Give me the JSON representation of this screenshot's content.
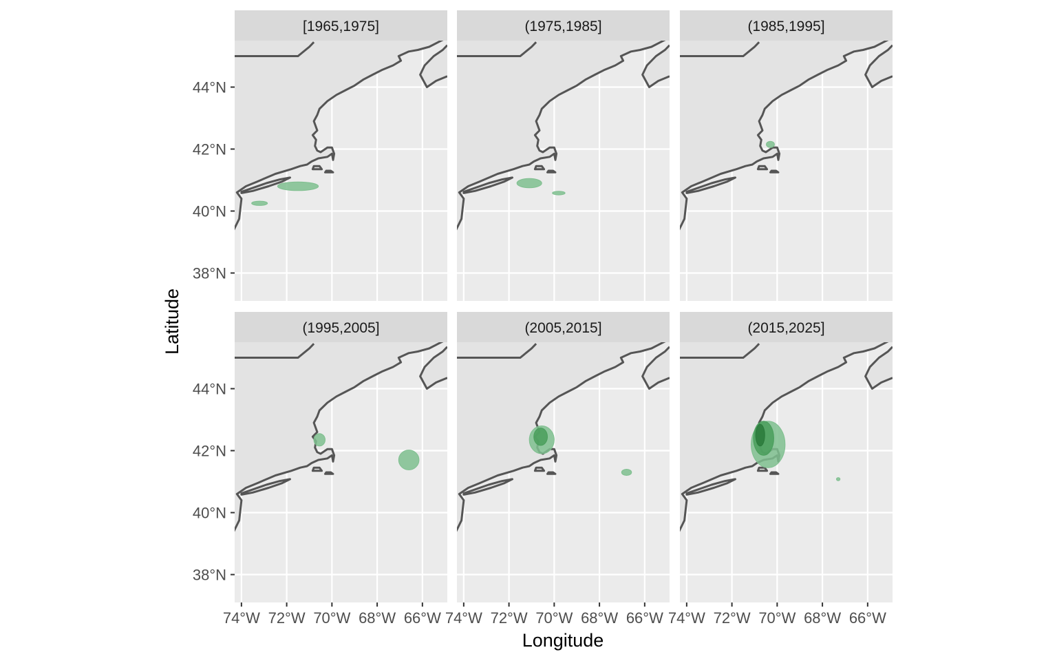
{
  "chart_data": {
    "type": "faceted-map",
    "xlabel": "Longitude",
    "ylabel": "Latitude",
    "xlim": [
      -74.3,
      -64.9
    ],
    "ylim": [
      37.1,
      45.5
    ],
    "x_ticks": [
      -74,
      -72,
      -70,
      -68,
      -66
    ],
    "x_tick_labels": [
      "74°W",
      "72°W",
      "70°W",
      "68°W",
      "66°W"
    ],
    "y_ticks": [
      38,
      40,
      42,
      44
    ],
    "y_tick_labels": [
      "38°N",
      "40°N",
      "42°N",
      "44°N"
    ],
    "facets": [
      {
        "label": "[1965,1975]",
        "regions": [
          {
            "lon": -71.5,
            "lat": 40.8,
            "rx": 0.9,
            "ry": 0.14,
            "level": 1
          },
          {
            "lon": -73.2,
            "lat": 40.25,
            "rx": 0.35,
            "ry": 0.07,
            "level": 1
          }
        ]
      },
      {
        "label": "(1975,1985]",
        "regions": [
          {
            "lon": -71.1,
            "lat": 40.9,
            "rx": 0.55,
            "ry": 0.15,
            "level": 1
          },
          {
            "lon": -69.8,
            "lat": 40.58,
            "rx": 0.28,
            "ry": 0.06,
            "level": 1
          }
        ]
      },
      {
        "label": "(1985,1995]",
        "regions": [
          {
            "lon": -70.3,
            "lat": 42.15,
            "rx": 0.18,
            "ry": 0.1,
            "level": 1
          }
        ]
      },
      {
        "label": "(1995,2005]",
        "regions": [
          {
            "lon": -70.55,
            "lat": 42.35,
            "rx": 0.25,
            "ry": 0.2,
            "level": 1
          },
          {
            "lon": -66.6,
            "lat": 41.7,
            "rx": 0.45,
            "ry": 0.32,
            "level": 1
          }
        ]
      },
      {
        "label": "(2005,2015]",
        "regions": [
          {
            "lon": -70.55,
            "lat": 42.35,
            "rx": 0.55,
            "ry": 0.45,
            "level": 1
          },
          {
            "lon": -70.6,
            "lat": 42.45,
            "rx": 0.3,
            "ry": 0.28,
            "level": 2
          },
          {
            "lon": -66.8,
            "lat": 41.3,
            "rx": 0.22,
            "ry": 0.1,
            "level": 1
          }
        ]
      },
      {
        "label": "(2015,2025]",
        "regions": [
          {
            "lon": -70.4,
            "lat": 42.2,
            "rx": 0.75,
            "ry": 0.75,
            "level": 1
          },
          {
            "lon": -70.6,
            "lat": 42.4,
            "rx": 0.45,
            "ry": 0.55,
            "level": 2
          },
          {
            "lon": -70.75,
            "lat": 42.5,
            "rx": 0.2,
            "ry": 0.35,
            "level": 3
          },
          {
            "lon": -67.3,
            "lat": 41.08,
            "rx": 0.08,
            "ry": 0.05,
            "level": 1
          }
        ]
      }
    ],
    "colors": {
      "panel": "#ebebeb",
      "grid": "#ffffff",
      "strip": "#d9d9d9",
      "land": "#e3e3e3",
      "coast": "#555555",
      "density": [
        "#7fbf8f",
        "#4a9e5c",
        "#2a7a3b"
      ]
    }
  }
}
